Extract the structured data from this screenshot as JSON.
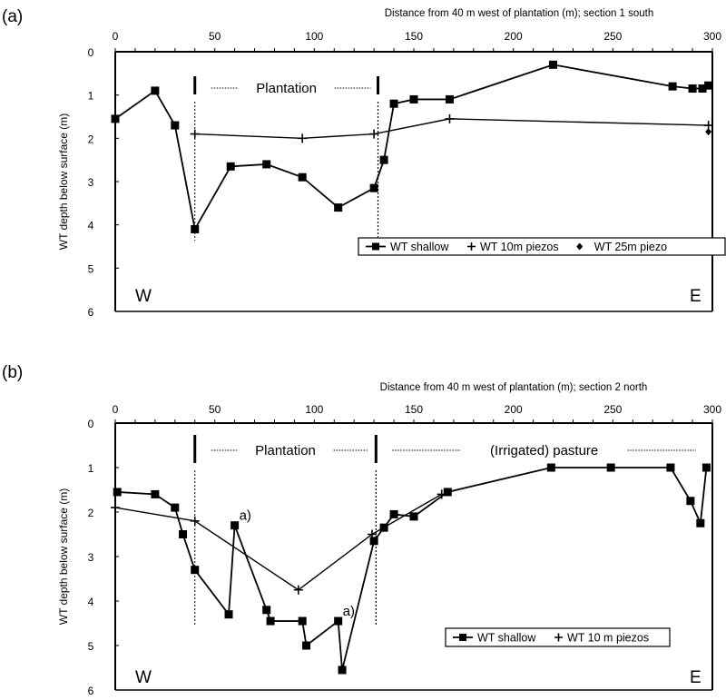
{
  "chart_data": [
    {
      "type": "line",
      "panel_label": "(a)",
      "title": "Distance from 40 m west of plantation (m); section 1 south",
      "xlabel": "Distance from 40 m west of plantation (m); section 1 south",
      "ylabel": "WT depth below surface (m)",
      "xlim": [
        0,
        300
      ],
      "ylim": [
        0,
        6
      ],
      "y_inverted": true,
      "x_ticks": [
        0,
        50,
        100,
        150,
        200,
        250,
        300
      ],
      "y_ticks": [
        0,
        1,
        2,
        3,
        4,
        5,
        6
      ],
      "grid": false,
      "corner_labels": {
        "west": "W",
        "east": "E"
      },
      "zones": [
        {
          "label": "Plantation",
          "x_start": 40,
          "x_end": 132
        }
      ],
      "annotations": [],
      "legend": {
        "placement": "lower-right",
        "entries": [
          "WT shallow",
          "WT 10m piezos",
          "WT 25m piezo"
        ]
      },
      "series": [
        {
          "name": "WT shallow",
          "marker": "square",
          "x": [
            0,
            20,
            30,
            40,
            58,
            76,
            94,
            112,
            130,
            135,
            140,
            150,
            168,
            220,
            280,
            290,
            295,
            298
          ],
          "y": [
            1.55,
            0.9,
            1.7,
            4.1,
            2.65,
            2.6,
            2.9,
            3.6,
            3.15,
            2.5,
            1.2,
            1.1,
            1.1,
            0.3,
            0.8,
            0.85,
            0.85,
            0.78
          ]
        },
        {
          "name": "WT 10m piezos",
          "marker": "plus",
          "x": [
            40,
            94,
            130,
            168,
            298
          ],
          "y": [
            1.9,
            2.0,
            1.9,
            1.55,
            1.7
          ]
        },
        {
          "name": "WT 25m piezo",
          "marker": "diamond",
          "x": [
            298
          ],
          "y": [
            1.85
          ]
        }
      ]
    },
    {
      "type": "line",
      "panel_label": "(b)",
      "title": "Distance from 40 m west of plantation (m); section 2 north",
      "xlabel": "Distance from 40 m west of plantation (m); section 2 north",
      "ylabel": "WT depth below surface (m)",
      "xlim": [
        0,
        300
      ],
      "ylim": [
        0,
        6
      ],
      "y_inverted": true,
      "x_ticks": [
        0,
        50,
        100,
        150,
        200,
        250,
        300
      ],
      "y_ticks": [
        0,
        1,
        2,
        3,
        4,
        5,
        6
      ],
      "grid": false,
      "corner_labels": {
        "west": "W",
        "east": "E"
      },
      "zones": [
        {
          "label": "Plantation",
          "x_start": 40,
          "x_end": 131
        },
        {
          "label": "(Irrigated) pasture",
          "x_start": 131,
          "x_end": 300
        }
      ],
      "annotations": [
        {
          "text": "a)",
          "x": 60,
          "y": 2.3
        },
        {
          "text": "a)",
          "x": 112,
          "y": 4.45
        }
      ],
      "legend": {
        "placement": "lower-right",
        "entries": [
          "WT shallow",
          "WT 10 m piezos"
        ]
      },
      "series": [
        {
          "name": "WT shallow",
          "marker": "square",
          "x": [
            1,
            20,
            30,
            34,
            40,
            57,
            60,
            76,
            78,
            94,
            96,
            112,
            114,
            130,
            135,
            140,
            150,
            167,
            219,
            249,
            279,
            289,
            294,
            297
          ],
          "y": [
            1.55,
            1.6,
            1.9,
            2.5,
            3.3,
            4.3,
            2.3,
            4.2,
            4.45,
            4.45,
            5.0,
            4.45,
            5.55,
            2.65,
            2.35,
            2.05,
            2.1,
            1.55,
            1.0,
            1.0,
            1.0,
            1.75,
            2.25,
            1.0
          ]
        },
        {
          "name": "WT 10 m piezos",
          "marker": "plus",
          "x": [
            0,
            40,
            92,
            129,
            164
          ],
          "y": [
            1.9,
            2.2,
            3.75,
            2.5,
            1.6
          ]
        }
      ]
    }
  ]
}
